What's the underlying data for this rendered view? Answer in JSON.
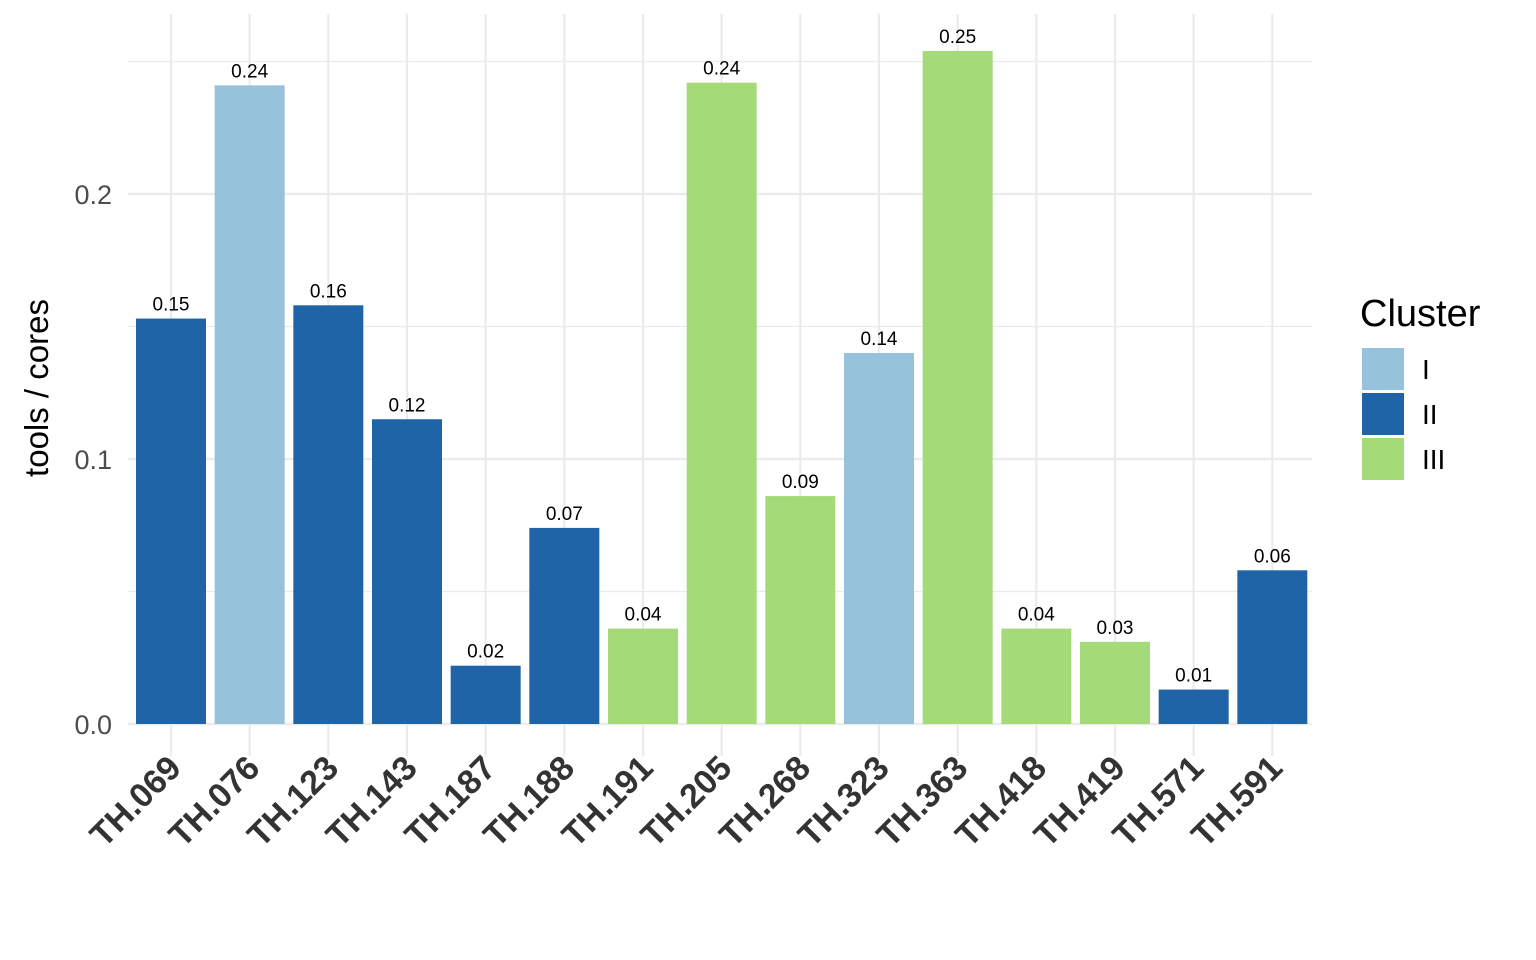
{
  "chart_data": {
    "type": "bar",
    "categories": [
      "TH.069",
      "TH.076",
      "TH.123",
      "TH.143",
      "TH.187",
      "TH.188",
      "TH.191",
      "TH.205",
      "TH.268",
      "TH.323",
      "TH.363",
      "TH.418",
      "TH.419",
      "TH.571",
      "TH.591"
    ],
    "values": [
      0.153,
      0.241,
      0.158,
      0.115,
      0.022,
      0.074,
      0.036,
      0.242,
      0.086,
      0.14,
      0.254,
      0.036,
      0.031,
      0.013,
      0.058
    ],
    "data_labels": [
      "0.15",
      "0.24",
      "0.16",
      "0.12",
      "0.02",
      "0.07",
      "0.04",
      "0.24",
      "0.09",
      "0.14",
      "0.25",
      "0.04",
      "0.03",
      "0.01",
      "0.06"
    ],
    "clusters": [
      "II",
      "I",
      "II",
      "II",
      "II",
      "II",
      "III",
      "III",
      "III",
      "I",
      "III",
      "III",
      "III",
      "II",
      "II"
    ],
    "ylabel": "tools / cores",
    "xlabel": "",
    "ylim": [
      0,
      0.25
    ],
    "yticks": [
      0.0,
      0.1,
      0.2
    ],
    "ytick_labels": [
      "0.0",
      "0.1",
      "0.2"
    ],
    "grid": true,
    "legend": {
      "title": "Cluster",
      "position": "right",
      "entries": [
        {
          "label": "I",
          "color": "#97c2dc"
        },
        {
          "label": "II",
          "color": "#1f64a6"
        },
        {
          "label": "III",
          "color": "#a4da78"
        }
      ]
    }
  }
}
